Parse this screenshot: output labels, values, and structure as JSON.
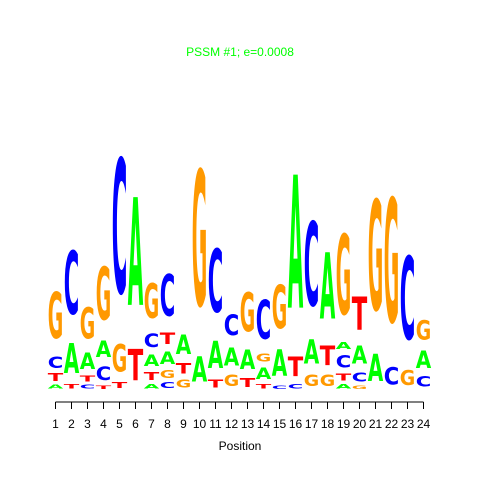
{
  "chart_data": {
    "type": "sequence-logo",
    "title": "PSSM #1; e=0.0008",
    "xlabel": "Position",
    "ylabel": "",
    "title_color": "#00ff00",
    "colors": {
      "A": "#00ff00",
      "C": "#0000ff",
      "G": "#ff9900",
      "T": "#ff0000"
    },
    "positions": [
      {
        "pos": 1,
        "stack": [
          [
            "A",
            0.035
          ],
          [
            "T",
            0.065
          ],
          [
            "C",
            0.1
          ],
          [
            "G",
            0.4
          ]
        ]
      },
      {
        "pos": 2,
        "stack": [
          [
            "T",
            0.04
          ],
          [
            "A",
            0.26
          ],
          [
            "C",
            0.55
          ]
        ]
      },
      {
        "pos": 3,
        "stack": [
          [
            "C",
            0.035
          ],
          [
            "T",
            0.05
          ],
          [
            "A",
            0.14
          ],
          [
            "G",
            0.27
          ]
        ]
      },
      {
        "pos": 4,
        "stack": [
          [
            "T",
            0.03
          ],
          [
            "C",
            0.12
          ],
          [
            "A",
            0.14
          ],
          [
            "G",
            0.46
          ]
        ]
      },
      {
        "pos": 5,
        "stack": [
          [
            "T",
            0.05
          ],
          [
            "G",
            0.24
          ],
          [
            "C",
            1.17
          ]
        ]
      },
      {
        "pos": 6,
        "stack": [
          [
            "T",
            0.27
          ],
          [
            "A",
            0.94
          ]
        ]
      },
      {
        "pos": 7,
        "stack": [
          [
            "A",
            0.04
          ],
          [
            "T",
            0.07
          ],
          [
            "A",
            0.1
          ],
          [
            "C",
            0.12
          ],
          [
            "G",
            0.3
          ]
        ]
      },
      {
        "pos": 8,
        "stack": [
          [
            "C",
            0.05
          ],
          [
            "G",
            0.07
          ],
          [
            "A",
            0.11
          ],
          [
            "T",
            0.1
          ],
          [
            "C",
            0.36
          ]
        ]
      },
      {
        "pos": 9,
        "stack": [
          [
            "G",
            0.07
          ],
          [
            "T",
            0.09
          ],
          [
            "A",
            0.17
          ]
        ]
      },
      {
        "pos": 10,
        "stack": [
          [
            "A",
            0.22
          ],
          [
            "G",
            1.18
          ]
        ]
      },
      {
        "pos": 11,
        "stack": [
          [
            "T",
            0.07
          ],
          [
            "A",
            0.24
          ],
          [
            "C",
            0.55
          ]
        ]
      },
      {
        "pos": 12,
        "stack": [
          [
            "G",
            0.1
          ],
          [
            "A",
            0.16
          ],
          [
            "C",
            0.18
          ]
        ]
      },
      {
        "pos": 13,
        "stack": [
          [
            "T",
            0.08
          ],
          [
            "A",
            0.17
          ],
          [
            "G",
            0.34
          ]
        ]
      },
      {
        "pos": 14,
        "stack": [
          [
            "T",
            0.04
          ],
          [
            "A",
            0.1
          ],
          [
            "G",
            0.07
          ],
          [
            "C",
            0.34
          ]
        ]
      },
      {
        "pos": 15,
        "stack": [
          [
            "C",
            0.03
          ],
          [
            "A",
            0.23
          ],
          [
            "G",
            0.38
          ]
        ]
      },
      {
        "pos": 16,
        "stack": [
          [
            "C",
            0.04
          ],
          [
            "T",
            0.17
          ],
          [
            "A",
            1.16
          ]
        ]
      },
      {
        "pos": 17,
        "stack": [
          [
            "G",
            0.1
          ],
          [
            "A",
            0.21
          ],
          [
            "C",
            0.73
          ]
        ]
      },
      {
        "pos": 18,
        "stack": [
          [
            "G",
            0.1
          ],
          [
            "T",
            0.17
          ],
          [
            "A",
            0.58
          ]
        ]
      },
      {
        "pos": 19,
        "stack": [
          [
            "A",
            0.04
          ],
          [
            "T",
            0.06
          ],
          [
            "C",
            0.11
          ],
          [
            "A",
            0.06
          ],
          [
            "G",
            0.7
          ]
        ]
      },
      {
        "pos": 20,
        "stack": [
          [
            "G",
            0.03
          ],
          [
            "C",
            0.08
          ],
          [
            "A",
            0.16
          ],
          [
            "T",
            0.29
          ]
        ]
      },
      {
        "pos": 21,
        "stack": [
          [
            "A",
            0.24
          ],
          [
            "G",
            0.96
          ]
        ]
      },
      {
        "pos": 22,
        "stack": [
          [
            "C",
            0.15
          ],
          [
            "G",
            1.08
          ]
        ]
      },
      {
        "pos": 23,
        "stack": [
          [
            "G",
            0.13
          ],
          [
            "C",
            0.72
          ]
        ]
      },
      {
        "pos": 24,
        "stack": [
          [
            "C",
            0.09
          ],
          [
            "A",
            0.15
          ],
          [
            "G",
            0.17
          ]
        ]
      }
    ],
    "xticks": [
      "1",
      "2",
      "3",
      "4",
      "5",
      "6",
      "7",
      "8",
      "9",
      "10",
      "11",
      "12",
      "13",
      "14",
      "15",
      "16",
      "17",
      "18",
      "19",
      "20",
      "21",
      "22",
      "23",
      "24"
    ]
  }
}
